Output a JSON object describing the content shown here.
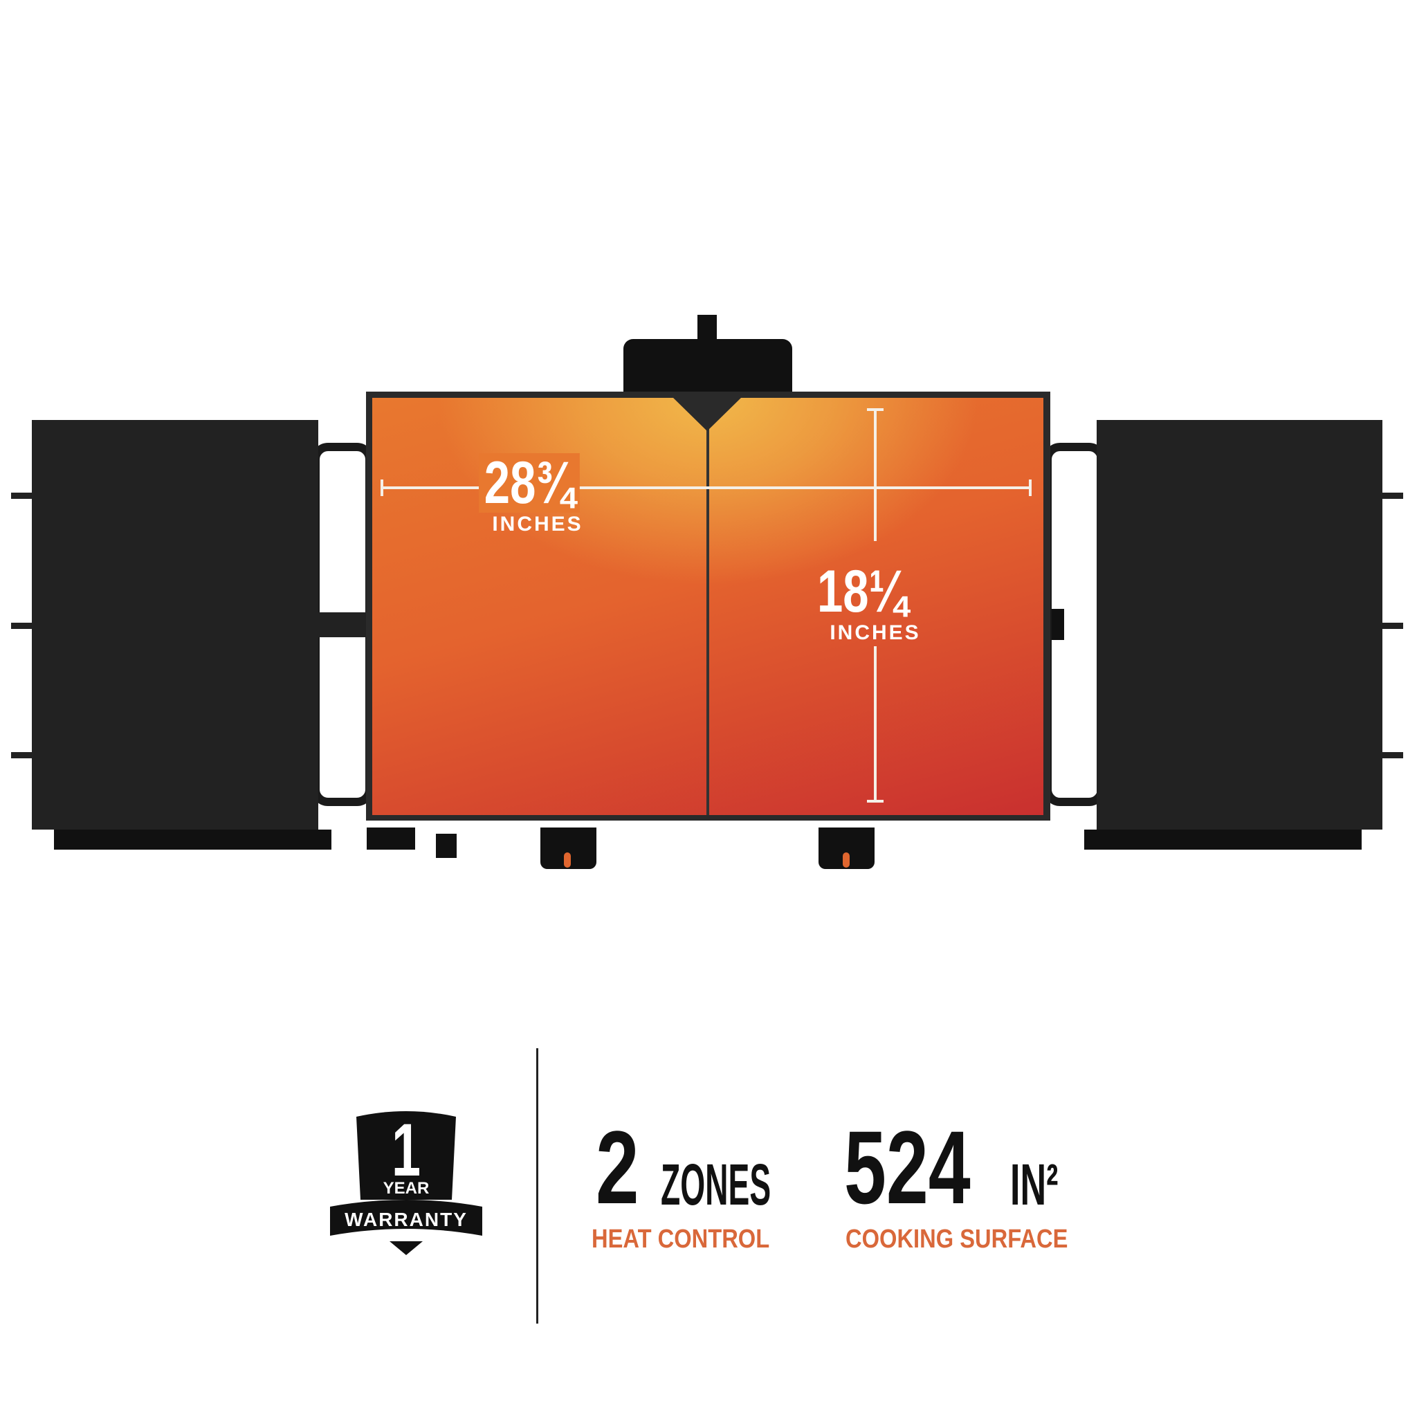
{
  "product": {
    "width_value": "28¾",
    "width_unit": "INCHES",
    "depth_value": "18¼",
    "depth_unit": "INCHES"
  },
  "features": [
    {
      "value": "2",
      "unit": "ZONES",
      "caption": "HEAT CONTROL"
    },
    {
      "value": "524",
      "unit": "IN²",
      "caption": "COOKING SURFACE"
    }
  ],
  "warranty": {
    "number": "1",
    "year": "YEAR",
    "label": "WARRANTY"
  },
  "colors": {
    "accent": "#d9683a",
    "body": "#222222",
    "surface_top": "#f1b84a",
    "surface_bottom": "#c9302f"
  }
}
